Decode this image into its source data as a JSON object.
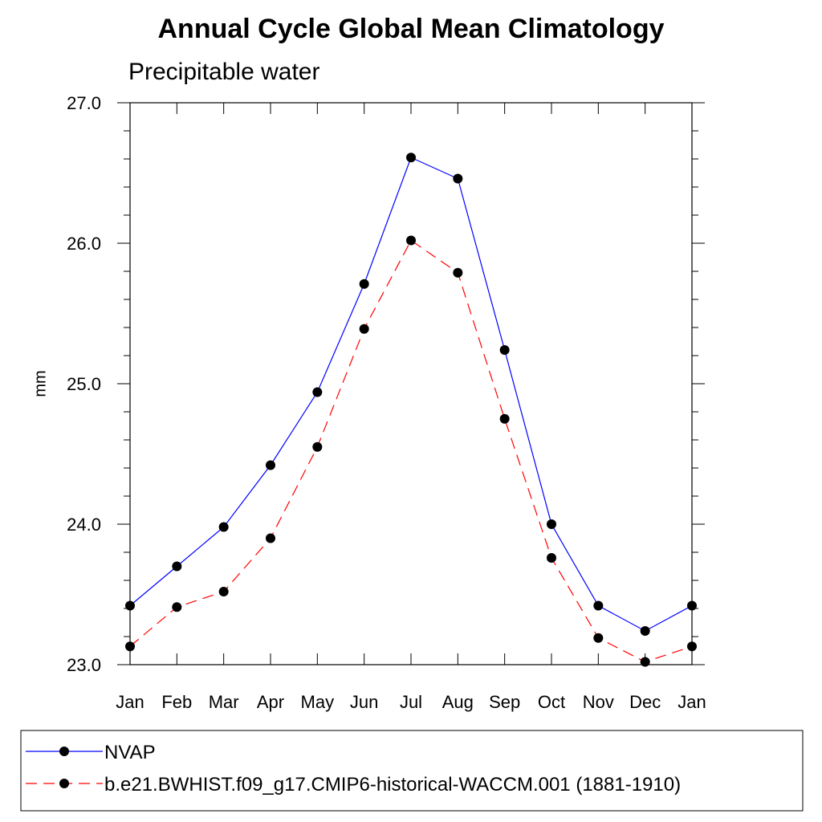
{
  "chart_data": {
    "type": "line",
    "title": "Annual Cycle Global Mean Climatology",
    "subtitle": "Precipitable water",
    "ylabel": "mm",
    "xlabel": "",
    "ylim": [
      23.0,
      27.0
    ],
    "y_ticks": [
      "23.0",
      "24.0",
      "25.0",
      "26.0",
      "27.0"
    ],
    "categories": [
      "Jan",
      "Feb",
      "Mar",
      "Apr",
      "May",
      "Jun",
      "Jul",
      "Aug",
      "Sep",
      "Oct",
      "Nov",
      "Dec",
      "Jan"
    ],
    "grid": false,
    "legend_position": "bottom",
    "series": [
      {
        "name": "NVAP",
        "color": "#0000ff",
        "line_style": "solid",
        "marker": "filled-circle",
        "values": [
          23.42,
          23.7,
          23.98,
          24.42,
          24.94,
          25.71,
          26.61,
          26.46,
          25.24,
          24.0,
          23.42,
          23.24,
          23.42
        ]
      },
      {
        "name": "b.e21.BWHIST.f09_g17.CMIP6-historical-WACCM.001 (1881-1910)",
        "color": "#ff0000",
        "line_style": "dashed",
        "marker": "filled-circle",
        "values": [
          23.13,
          23.41,
          23.52,
          23.9,
          24.55,
          25.39,
          26.02,
          25.79,
          24.75,
          23.76,
          23.19,
          23.02,
          23.13
        ]
      }
    ]
  }
}
